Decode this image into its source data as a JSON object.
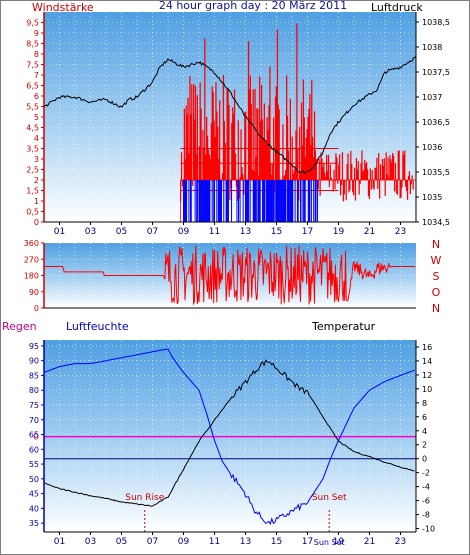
{
  "colors": {
    "wind": "#ff0000",
    "gust": "#0000ff",
    "pressure": "#000000",
    "humidity": "#0000ff",
    "temperature": "#000000",
    "rain": "#ff00ff",
    "axis_left": "#cc0000",
    "axis_right": "#000080",
    "bg_top": "#5aa6e6",
    "bg_bottom": "#ffffff"
  },
  "x_ticks": [
    "01",
    "03",
    "05",
    "07",
    "09",
    "11",
    "13",
    "15",
    "17",
    "19",
    "21",
    "23"
  ],
  "chart_data": [
    {
      "type": "line",
      "title": "24 hour graph day : 20 März 2011",
      "left_label": "Windstärke",
      "right_label": "Luftdruck",
      "y_left_ticks": [
        "0",
        "0,5",
        "1",
        "1,5",
        "2",
        "2,5",
        "3",
        "3,5",
        "4",
        "4,5",
        "5",
        "5,5",
        "6",
        "6,5",
        "7",
        "7,5",
        "8",
        "8,5",
        "9",
        "9,5"
      ],
      "y_right_ticks": [
        "1034,5",
        "1035",
        "1035,5",
        "1036",
        "1036,5",
        "1037",
        "1037,5",
        "1038",
        "1038,5"
      ],
      "ylim_left": [
        0,
        10
      ],
      "ylim_right": [
        1034.5,
        1038.7
      ],
      "x_range_hours": [
        0,
        24
      ],
      "series": [
        {
          "name": "Luftdruck",
          "axis": "right",
          "x": [
            0,
            1,
            2,
            3,
            4,
            5,
            5.5,
            6,
            7,
            7.5,
            8,
            9,
            10,
            10.5,
            11,
            12,
            12.5,
            13,
            14,
            15,
            16,
            16.5,
            17,
            17.5,
            18,
            18.5,
            19,
            20,
            21,
            21.5,
            22,
            23,
            24
          ],
          "values": [
            1036.8,
            1037,
            1037,
            1036.9,
            1036.95,
            1036.8,
            1036.95,
            1037.0,
            1037.3,
            1037.6,
            1037.75,
            1037.6,
            1037.7,
            1037.6,
            1037.5,
            1037.1,
            1036.85,
            1036.6,
            1036.2,
            1035.9,
            1035.65,
            1035.5,
            1035.5,
            1035.65,
            1035.9,
            1036.3,
            1036.5,
            1036.85,
            1037.05,
            1037.15,
            1037.5,
            1037.6,
            1037.8
          ]
        }
      ],
      "wind_summary": {
        "wind_base_before": 0,
        "wind_base_active": 2.0,
        "wind_active_from_hour": 8.8,
        "wind_active_to_hour": 23.8,
        "wind_max": 9.5,
        "gust_active_from_hour": 9.0,
        "gust_active_to_hour": 17.7,
        "gust_max": 2.0
      }
    },
    {
      "type": "line",
      "title": "",
      "right_label": "N W S O N",
      "right_letters": [
        "N",
        "W",
        "S",
        "O",
        "N"
      ],
      "y_left_ticks": [
        "0",
        "90",
        "180",
        "270",
        "360"
      ],
      "ylim": [
        0,
        360
      ],
      "series": [
        {
          "name": "Windrichtung",
          "x": [
            0,
            1.2,
            1.3,
            3.8,
            3.9,
            7.7,
            8.0,
            12,
            16,
            19.6,
            20.0,
            20.5,
            21,
            21.5,
            22.5,
            24
          ],
          "values": [
            230,
            230,
            200,
            200,
            180,
            180,
            120,
            200,
            180,
            40,
            230,
            200,
            170,
            220,
            230,
            230
          ]
        }
      ]
    },
    {
      "type": "line",
      "title": "",
      "legend": [
        "Regen",
        "Luftfeuchte",
        "Temperatur"
      ],
      "y_left_ticks": [
        "35",
        "40",
        "45",
        "50",
        "55",
        "60",
        "65",
        "70",
        "75",
        "80",
        "85",
        "90",
        "95"
      ],
      "y_right_ticks": [
        "-10",
        "-8",
        "-6",
        "-4",
        "-2",
        "0",
        "2",
        "4",
        "6",
        "8",
        "10",
        "12",
        "14",
        "16"
      ],
      "ylim_left": [
        32,
        97
      ],
      "ylim_right": [
        -10.5,
        17
      ],
      "rain_zero_label": "0",
      "annotations": [
        "Sun Rise",
        "Sun Set"
      ],
      "sunrise_hour": 6.5,
      "sunset_hour": 18.4,
      "series": [
        {
          "name": "Luftfeuchte",
          "axis": "left",
          "x": [
            0,
            1,
            2,
            3,
            4,
            5,
            6,
            7,
            8,
            8.3,
            9,
            10,
            10.5,
            11,
            11.5,
            12,
            13,
            13.5,
            14,
            14.5,
            15,
            16,
            17,
            18,
            18.5,
            19,
            20,
            21,
            22,
            23,
            24
          ],
          "values": [
            86,
            88,
            89,
            89,
            90,
            91,
            92,
            93,
            94,
            91,
            86,
            80,
            72,
            63,
            56,
            52,
            45,
            40,
            37,
            35,
            36,
            39,
            42,
            50,
            57,
            63,
            74,
            80,
            83,
            85,
            87
          ]
        },
        {
          "name": "Temperatur",
          "axis": "right",
          "x": [
            0,
            1,
            2,
            3,
            4,
            5,
            6,
            7,
            8,
            9,
            10,
            11,
            12,
            13,
            14,
            14.5,
            15,
            16,
            16.5,
            17,
            18,
            19,
            20,
            21,
            22,
            23,
            24
          ],
          "values": [
            -3.5,
            -4.3,
            -4.8,
            -5.3,
            -5.7,
            -6.2,
            -6.5,
            -6.8,
            -5.5,
            -1.5,
            2.5,
            5.5,
            8.5,
            11.0,
            13.5,
            14.0,
            13.0,
            11.0,
            10.0,
            9.5,
            6.0,
            2.5,
            1.0,
            0.3,
            -0.5,
            -1.2,
            -1.8
          ]
        },
        {
          "name": "Regen",
          "axis": "rain",
          "x": [
            0,
            24
          ],
          "values": [
            0,
            0
          ]
        }
      ]
    }
  ]
}
